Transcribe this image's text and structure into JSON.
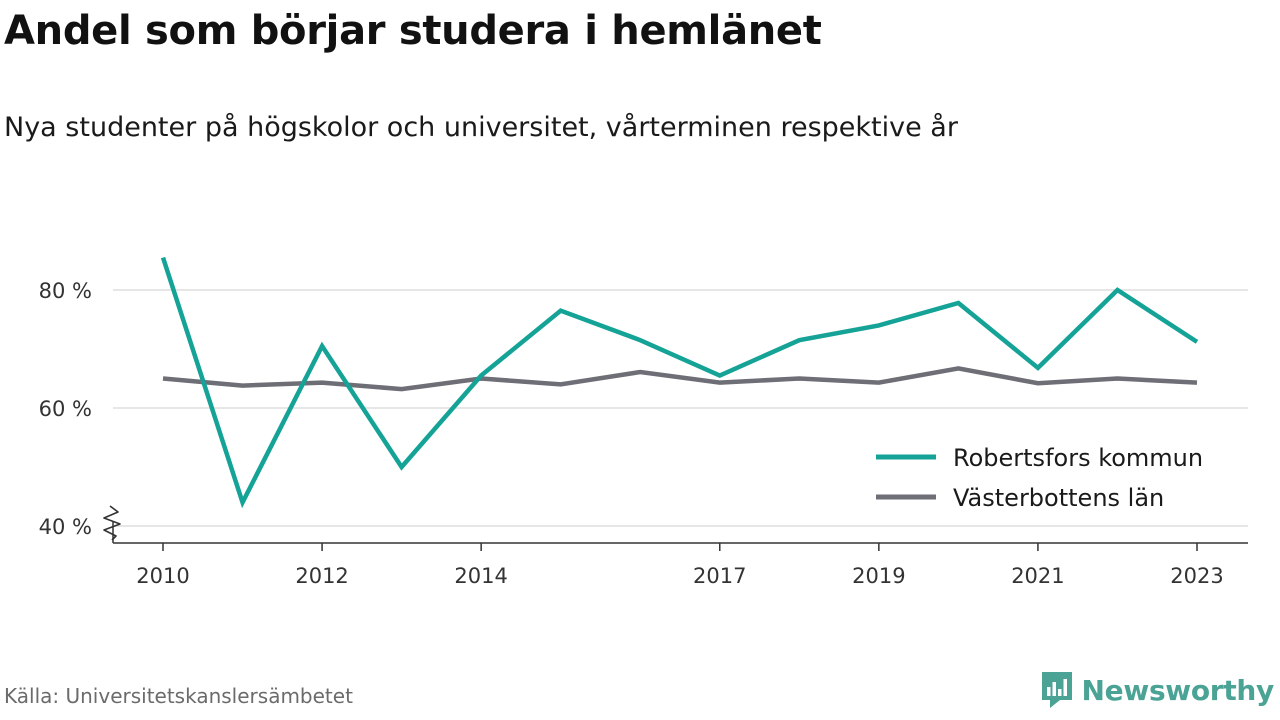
{
  "header": {
    "title": "Andel som börjar studera i hemlänet",
    "subtitle": "Nya studenter på högskolor och universitet, vårterminen respektive år"
  },
  "footer": {
    "source": "Källa: Universitetskanslersämbetet",
    "brand": "Newsworthy",
    "brand_color": "#4aa395"
  },
  "chart_data": {
    "type": "line",
    "x": [
      2010,
      2011,
      2012,
      2013,
      2014,
      2015,
      2016,
      2017,
      2018,
      2019,
      2020,
      2021,
      2022,
      2023
    ],
    "x_tick_labels": [
      "2010",
      "2012",
      "2014",
      "2017",
      "2019",
      "2021",
      "2023"
    ],
    "y_ticks": [
      40,
      60,
      80
    ],
    "y_tick_labels": [
      "40 %",
      "60 %",
      "80 %"
    ],
    "ylim": [
      37,
      90
    ],
    "y_axis_break": true,
    "grid": "horizontal",
    "legend_position": "bottom-right",
    "series": [
      {
        "name": "Robertsfors kommun",
        "color": "#14a396",
        "values": [
          85.5,
          44,
          70.5,
          50,
          65.5,
          76.5,
          71.5,
          65.5,
          71.5,
          74,
          77.8,
          66.8,
          80,
          71.2
        ]
      },
      {
        "name": "Västerbottens län",
        "color": "#6d6e76",
        "values": [
          65,
          63.8,
          64.3,
          63.2,
          65,
          64,
          66.1,
          64.3,
          65,
          64.3,
          66.7,
          64.2,
          65,
          64.3
        ]
      }
    ]
  }
}
